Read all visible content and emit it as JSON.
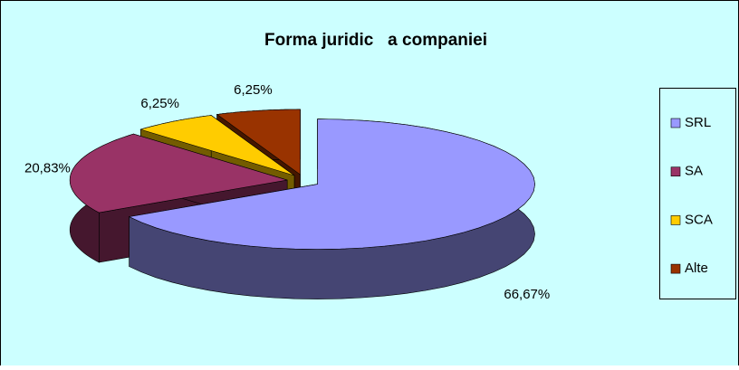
{
  "chart_data": {
    "type": "pie",
    "title": "Forma juridic   a companiei",
    "categories": [
      "SRL",
      "SA",
      "SCA",
      "Alte"
    ],
    "values": [
      66.67,
      20.83,
      6.25,
      6.25
    ],
    "value_labels": [
      "66,67%",
      "20,83%",
      "6,25%",
      "6,25%"
    ],
    "colors": [
      "#9999ff",
      "#993366",
      "#ffcc00",
      "#993300"
    ],
    "legend": "right"
  }
}
